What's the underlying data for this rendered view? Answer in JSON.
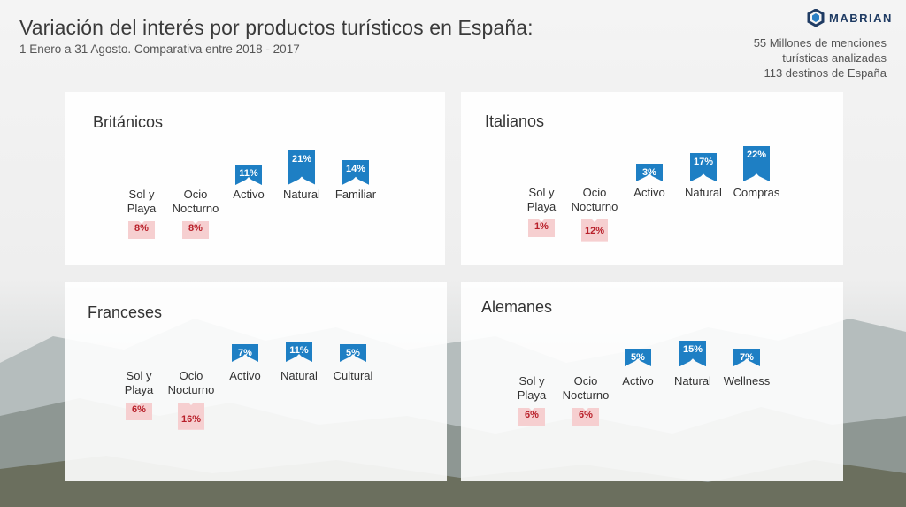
{
  "header": {
    "title": "Variación del interés por productos turísticos en España:",
    "subtitle": "1 Enero a 31 Agosto. Comparativa entre  2018 - 2017",
    "brand": "MABRIAN",
    "stats": [
      "55 Millones de menciones",
      "turísticas analizadas",
      "113 destinos de España"
    ]
  },
  "colors": {
    "positive": "#1e7fc4",
    "negative": "#f6cfd0",
    "negative_text": "#b8202a"
  },
  "chart_data": [
    {
      "type": "bar",
      "title": "Británicos",
      "categories": [
        "Sol y Playa",
        "Ocio Nocturno",
        "Activo",
        "Natural",
        "Familiar"
      ],
      "values": [
        -8,
        -8,
        11,
        21,
        14
      ],
      "labels": [
        "8%",
        "8%",
        "11%",
        "21%",
        "14%"
      ]
    },
    {
      "type": "bar",
      "title": "Italianos",
      "categories": [
        "Sol y Playa",
        "Ocio Nocturno",
        "Activo",
        "Natural",
        "Compras"
      ],
      "values": [
        -1,
        -12,
        3,
        17,
        22
      ],
      "labels": [
        "1%",
        "12%",
        "3%",
        "17%",
        "22%"
      ]
    },
    {
      "type": "bar",
      "title": "Franceses",
      "categories": [
        "Sol y Playa",
        "Ocio Nocturno",
        "Activo",
        "Natural",
        "Cultural"
      ],
      "values": [
        -6,
        -16,
        7,
        11,
        5
      ],
      "labels": [
        "6%",
        "16%",
        "7%",
        "11%",
        "5%"
      ]
    },
    {
      "type": "bar",
      "title": "Alemanes",
      "categories": [
        "Sol y Playa",
        "Ocio Nocturno",
        "Activo",
        "Natural",
        "Wellness"
      ],
      "values": [
        -6,
        -6,
        5,
        15,
        7
      ],
      "labels": [
        "6%",
        "6%",
        "5%",
        "15%",
        "7%"
      ]
    }
  ]
}
